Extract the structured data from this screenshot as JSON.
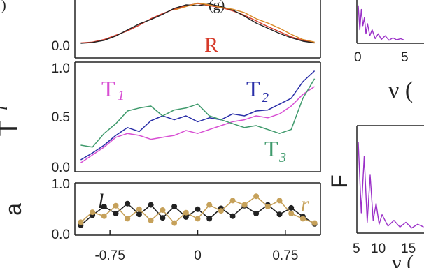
{
  "top_partial_labels": {
    "left": ")",
    "center": "(g)"
  },
  "colors": {
    "red": "#d63a2a",
    "orange": "#d98a28",
    "dark": "#222222",
    "magenta": "#d84fd3",
    "blue": "#2a2fa8",
    "green": "#3f9a6c",
    "gold": "#c6a15a",
    "purple": "#9b30c8"
  },
  "chart_data": [
    {
      "id": "R_panel",
      "type": "line",
      "label": "R",
      "ytick_labels": [
        "0.0"
      ],
      "series": [
        {
          "name": "",
          "color": "#d63a2a",
          "x": [
            -1.0,
            -0.9,
            -0.8,
            -0.7,
            -0.6,
            -0.5,
            -0.4,
            -0.3,
            -0.2,
            -0.1,
            0.0,
            0.1,
            0.2,
            0.3,
            0.4,
            0.5,
            0.6,
            0.7,
            0.8,
            0.9,
            1.0
          ],
          "y": [
            0.04,
            0.06,
            0.12,
            0.22,
            0.32,
            0.45,
            0.6,
            0.72,
            0.82,
            0.9,
            0.95,
            0.9,
            0.86,
            0.78,
            0.68,
            0.55,
            0.42,
            0.3,
            0.18,
            0.1,
            0.05
          ]
        },
        {
          "name": "",
          "color": "#222222",
          "x": [
            -1.0,
            -0.9,
            -0.8,
            -0.7,
            -0.6,
            -0.5,
            -0.4,
            -0.3,
            -0.2,
            -0.1,
            0.0,
            0.1,
            0.2,
            0.3,
            0.4,
            0.5,
            0.6,
            0.7,
            0.8,
            0.9,
            1.0
          ],
          "y": [
            0.03,
            0.05,
            0.1,
            0.2,
            0.34,
            0.48,
            0.58,
            0.7,
            0.84,
            0.92,
            0.9,
            0.94,
            0.88,
            0.8,
            0.66,
            0.5,
            0.38,
            0.26,
            0.16,
            0.08,
            0.04
          ]
        },
        {
          "name": "",
          "color": "#d98a28",
          "x": [
            -0.2,
            -0.1,
            0.0,
            0.1,
            0.2,
            0.3,
            0.4,
            0.5,
            0.6,
            0.7,
            0.8,
            0.9,
            1.0
          ],
          "y": [
            0.8,
            0.88,
            0.96,
            0.92,
            0.86,
            0.82,
            0.74,
            0.6,
            0.5,
            0.38,
            0.24,
            0.12,
            0.06
          ]
        }
      ]
    },
    {
      "id": "T_panel",
      "type": "line",
      "ylabel": "T",
      "ylabel_superscript": "l",
      "ytick_labels": [
        "1.0",
        "0.5",
        "0.0"
      ],
      "ylim": [
        0,
        1
      ],
      "labels": {
        "T1": "T",
        "T1_sub": "1",
        "T2": "T",
        "T2_sub": "2",
        "T3": "T",
        "T3_sub": "3"
      },
      "series": [
        {
          "name": "T1",
          "color": "#d84fd3",
          "x": [
            -1.0,
            -0.9,
            -0.8,
            -0.7,
            -0.6,
            -0.5,
            -0.4,
            -0.3,
            -0.2,
            -0.1,
            0.0,
            0.1,
            0.2,
            0.3,
            0.4,
            0.5,
            0.6,
            0.7,
            0.8,
            0.9,
            1.0
          ],
          "y": [
            0.02,
            0.1,
            0.18,
            0.28,
            0.32,
            0.3,
            0.26,
            0.28,
            0.3,
            0.35,
            0.32,
            0.36,
            0.4,
            0.44,
            0.46,
            0.5,
            0.48,
            0.52,
            0.6,
            0.72,
            0.8
          ]
        },
        {
          "name": "T2",
          "color": "#2a2fa8",
          "x": [
            -1.0,
            -0.9,
            -0.8,
            -0.7,
            -0.6,
            -0.5,
            -0.4,
            -0.3,
            -0.2,
            -0.1,
            0.0,
            0.1,
            0.2,
            0.3,
            0.4,
            0.5,
            0.6,
            0.7,
            0.8,
            0.9,
            1.0
          ],
          "y": [
            0.05,
            0.12,
            0.2,
            0.3,
            0.38,
            0.34,
            0.45,
            0.5,
            0.46,
            0.5,
            0.44,
            0.48,
            0.46,
            0.52,
            0.5,
            0.55,
            0.56,
            0.62,
            0.68,
            0.85,
            0.96
          ]
        },
        {
          "name": "T3",
          "color": "#3f9a6c",
          "x": [
            -1.0,
            -0.9,
            -0.8,
            -0.7,
            -0.6,
            -0.5,
            -0.4,
            -0.3,
            -0.2,
            -0.1,
            0.0,
            0.1,
            0.2,
            0.3,
            0.4,
            0.5,
            0.6,
            0.7,
            0.8,
            0.9,
            1.0
          ],
          "y": [
            0.2,
            0.18,
            0.32,
            0.42,
            0.55,
            0.58,
            0.6,
            0.5,
            0.56,
            0.58,
            0.62,
            0.5,
            0.46,
            0.42,
            0.38,
            0.4,
            0.36,
            0.32,
            0.36,
            0.68,
            0.88
          ]
        }
      ]
    },
    {
      "id": "a_panel",
      "type": "line",
      "ylabel": "a",
      "ytick_labels": [
        "1.0",
        "0.0"
      ],
      "ylim": [
        0,
        1
      ],
      "xticks": [
        -0.75,
        0,
        0.75
      ],
      "xtick_labels": [
        "-0.75",
        "0",
        "0.75"
      ],
      "xlim": [
        -1.05,
        1.05
      ],
      "labels": {
        "l": "l",
        "r": "r"
      },
      "series": [
        {
          "name": "l",
          "color": "#222222",
          "x": [
            -1.0,
            -0.9,
            -0.8,
            -0.7,
            -0.6,
            -0.5,
            -0.4,
            -0.3,
            -0.2,
            -0.1,
            0.0,
            0.1,
            0.2,
            0.3,
            0.4,
            0.5,
            0.6,
            0.7,
            0.8,
            0.9,
            1.0
          ],
          "y": [
            0.15,
            0.38,
            0.58,
            0.42,
            0.65,
            0.4,
            0.62,
            0.32,
            0.58,
            0.34,
            0.52,
            0.3,
            0.54,
            0.36,
            0.6,
            0.42,
            0.62,
            0.4,
            0.55,
            0.35,
            0.18
          ]
        },
        {
          "name": "r",
          "color": "#c6a15a",
          "x": [
            -1.0,
            -0.9,
            -0.8,
            -0.7,
            -0.6,
            -0.5,
            -0.4,
            -0.3,
            -0.2,
            -0.1,
            0.0,
            0.1,
            0.2,
            0.3,
            0.4,
            0.5,
            0.6,
            0.7,
            0.8,
            0.9,
            1.0
          ],
          "y": [
            0.22,
            0.45,
            0.36,
            0.6,
            0.3,
            0.52,
            0.26,
            0.5,
            0.2,
            0.44,
            0.3,
            0.62,
            0.48,
            0.72,
            0.62,
            0.82,
            0.58,
            0.72,
            0.42,
            0.3,
            0.2
          ]
        }
      ]
    },
    {
      "id": "nu_panel",
      "type": "line",
      "xtick_labels": [
        "0",
        "5"
      ],
      "xlabel": "ν (",
      "series": [
        {
          "name": "",
          "color": "#9b30c8",
          "x": [
            0,
            0.2,
            0.4,
            0.6,
            0.8,
            1.0,
            1.2,
            1.5,
            1.8,
            2.2,
            2.6,
            3.0,
            3.5,
            4.0,
            4.5,
            5.0,
            5.5,
            6.0
          ],
          "y": [
            0.9,
            0.3,
            0.8,
            0.4,
            0.6,
            0.2,
            0.45,
            0.15,
            0.3,
            0.08,
            0.2,
            0.06,
            0.15,
            0.04,
            0.1,
            0.05,
            0.08,
            0.04
          ]
        }
      ]
    },
    {
      "id": "F_panel",
      "type": "line",
      "ylabel": "F",
      "xtick_labels": [
        "5",
        "10",
        "15"
      ],
      "xlabel": "ν (",
      "series": [
        {
          "name": "",
          "color": "#9b30c8",
          "x": [
            5,
            5.5,
            6,
            6.5,
            7,
            7.5,
            8,
            8.5,
            9,
            10,
            11,
            12,
            13,
            14,
            15,
            16
          ],
          "y": [
            0.95,
            0.2,
            0.8,
            0.1,
            0.6,
            0.12,
            0.3,
            0.08,
            0.18,
            0.06,
            0.12,
            0.05,
            0.1,
            0.04,
            0.08,
            0.05
          ]
        }
      ]
    }
  ]
}
